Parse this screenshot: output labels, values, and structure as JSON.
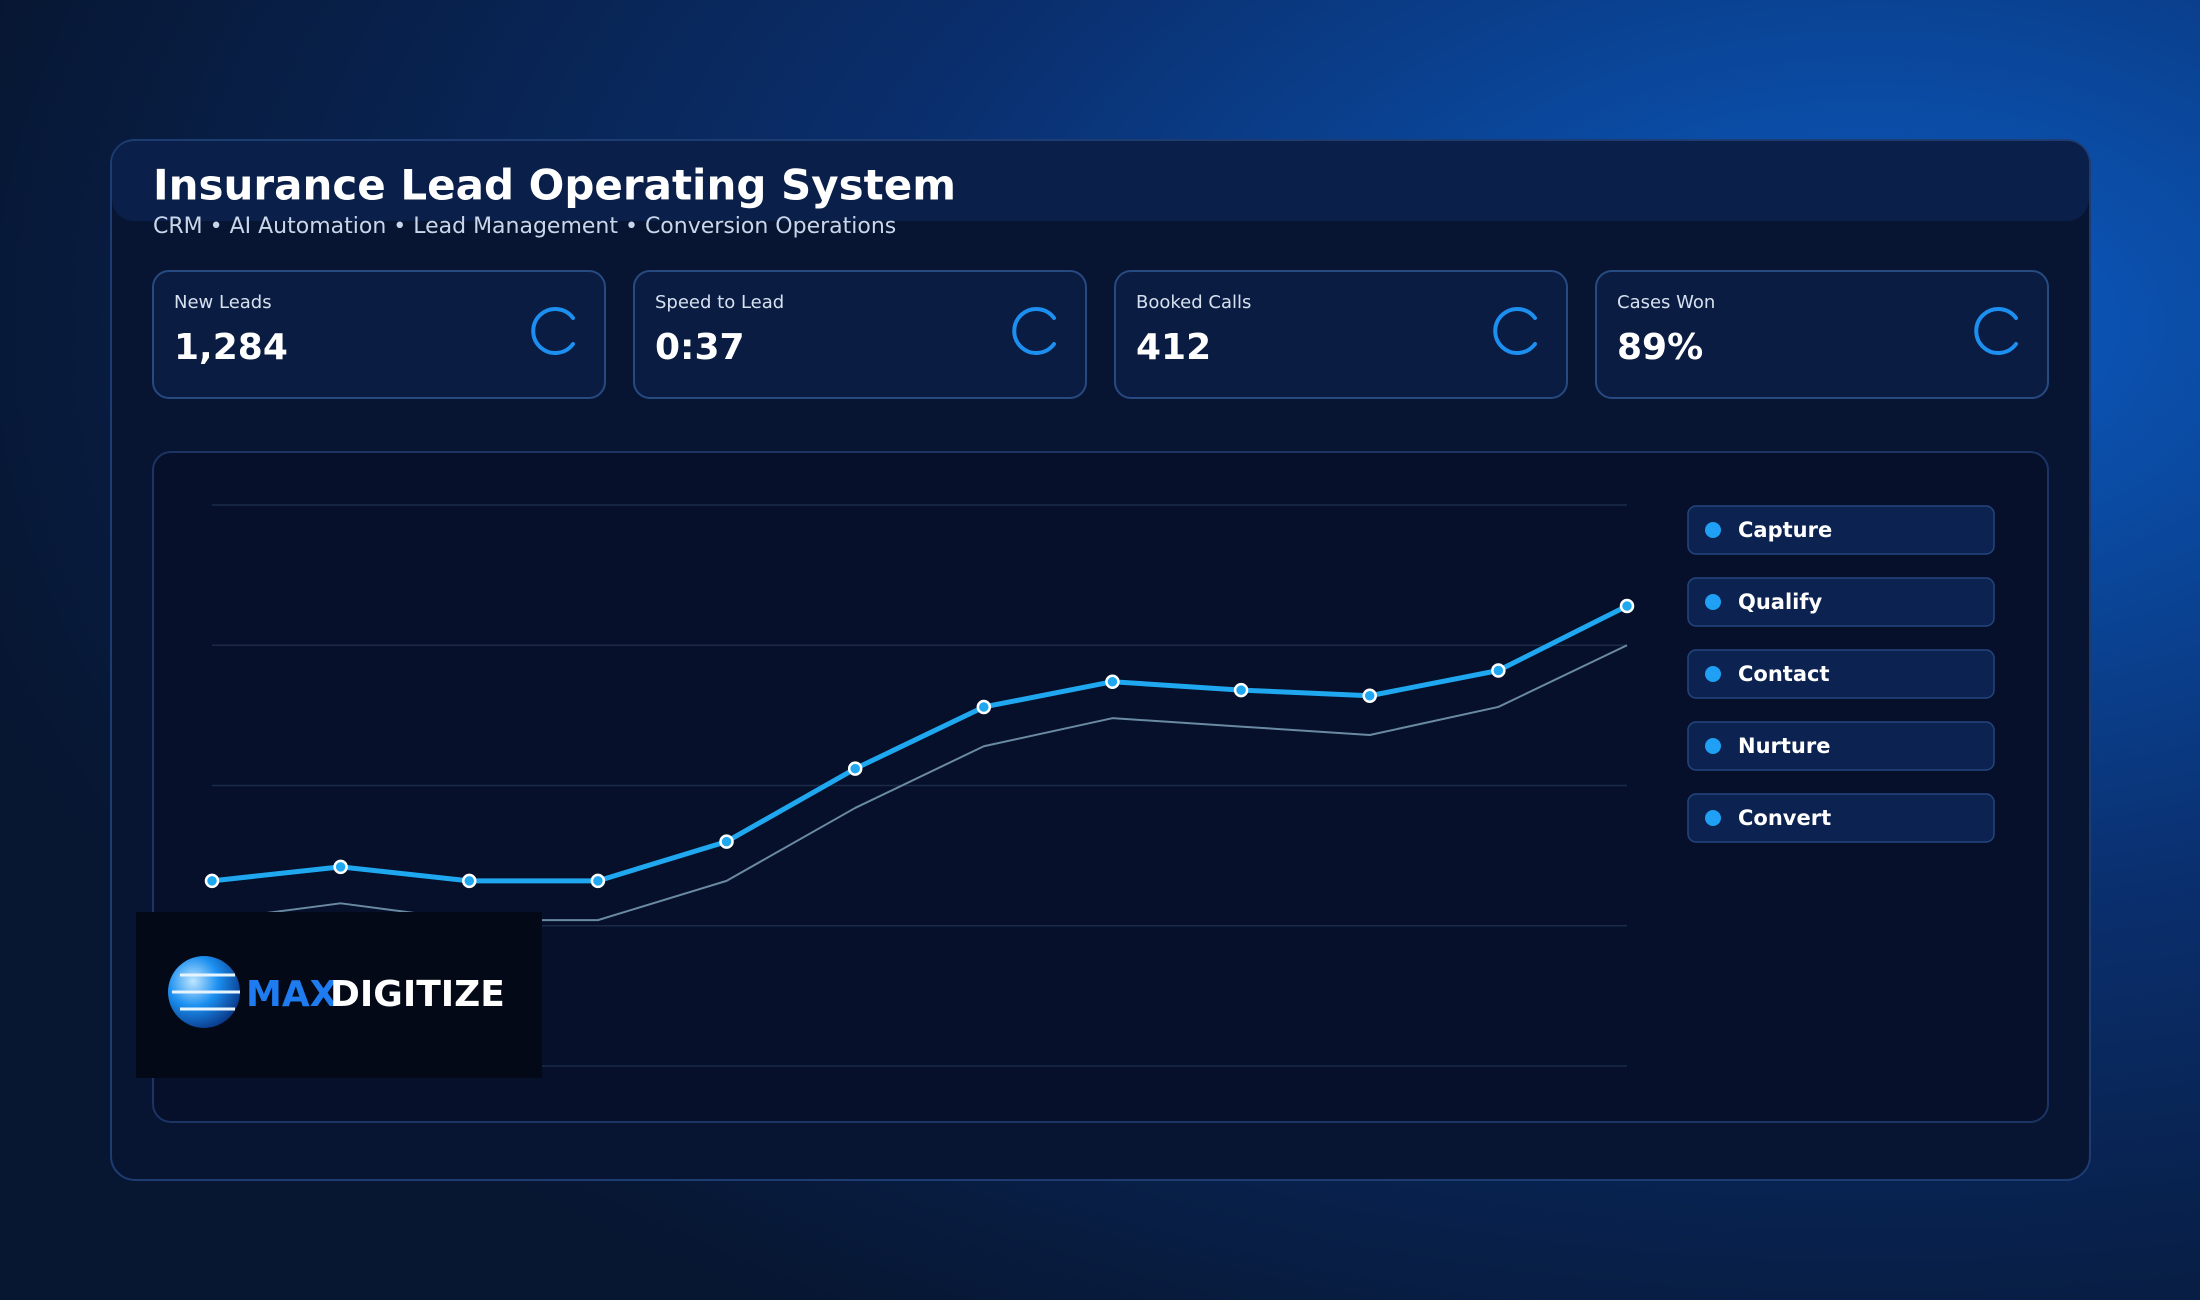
{
  "header": {
    "title": "Insurance Lead Operating System",
    "subtitle": "CRM • AI Automation • Lead Management • Conversion Operations"
  },
  "kpis": [
    {
      "label": "New Leads",
      "value": "1,284"
    },
    {
      "label": "Speed to Lead",
      "value": "0:37"
    },
    {
      "label": "Booked Calls",
      "value": "412"
    },
    {
      "label": "Cases Won",
      "value": "89%"
    }
  ],
  "chart_data": {
    "type": "line",
    "categories": [
      null,
      null,
      null,
      null,
      null,
      null,
      null,
      null,
      null,
      null,
      null,
      null
    ],
    "series": [
      {
        "color": "#1fa8f0",
        "values": [
          33,
          35.5,
          33,
          33,
          40,
          53,
          64,
          68.5,
          67,
          66,
          70.5,
          82
        ]
      },
      {
        "color": "#6a8aa3",
        "values": [
          26,
          29,
          26,
          26,
          33,
          46,
          57,
          62,
          60.5,
          59,
          64,
          75
        ]
      }
    ],
    "ylim": [
      0,
      100
    ],
    "yticks": [
      0,
      25,
      50,
      75,
      100
    ],
    "grid": true
  },
  "stages": [
    "Capture",
    "Qualify",
    "Contact",
    "Nurture",
    "Convert"
  ],
  "logo": {
    "part1": "MAX",
    "part2": "DIGITIZE"
  }
}
